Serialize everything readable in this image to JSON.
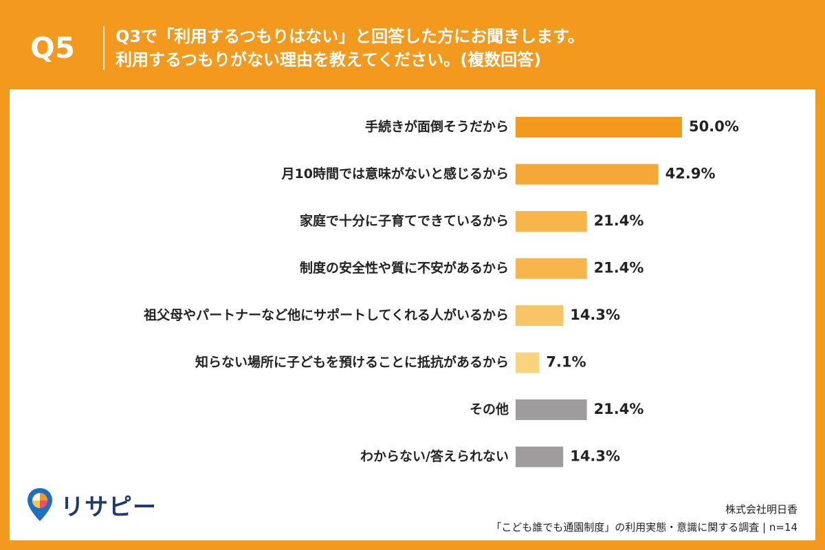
{
  "header": {
    "question_number": "Q5",
    "question_line1": "Q3で「利用するつもりはない」と回答した方にお聞きします。",
    "question_line2": "利用するつもりがない理由を教えてください。(複数回答)"
  },
  "chart_data": {
    "type": "bar",
    "orientation": "horizontal",
    "categories": [
      "手続きが面倒そうだから",
      "月10時間では意味がないと感じるから",
      "家庭で十分に子育てできているから",
      "制度の安全性や質に不安があるから",
      "祖父母やパートナーなど他にサポートしてくれる人がいるから",
      "知らない場所に子どもを預けることに抵抗があるから",
      "その他",
      "わからない/答えられない"
    ],
    "values": [
      50.0,
      42.9,
      21.4,
      21.4,
      14.3,
      7.1,
      21.4,
      14.3
    ],
    "value_labels": [
      "50.0%",
      "42.9%",
      "21.4%",
      "21.4%",
      "14.3%",
      "7.1%",
      "21.4%",
      "14.3%"
    ],
    "colors": [
      "#F39A1E",
      "#F5A836",
      "#F7B54C",
      "#F7B54C",
      "#F9C468",
      "#FAD37F",
      "#9E9C9D",
      "#9E9C9D"
    ],
    "xlim": [
      0,
      100
    ]
  },
  "footer": {
    "brand_name": "リサピー",
    "source_company": "株式会社明日香",
    "source_survey": "「こども誰でも通園制度」の利用実態・意識に関する調査 | n=14"
  }
}
